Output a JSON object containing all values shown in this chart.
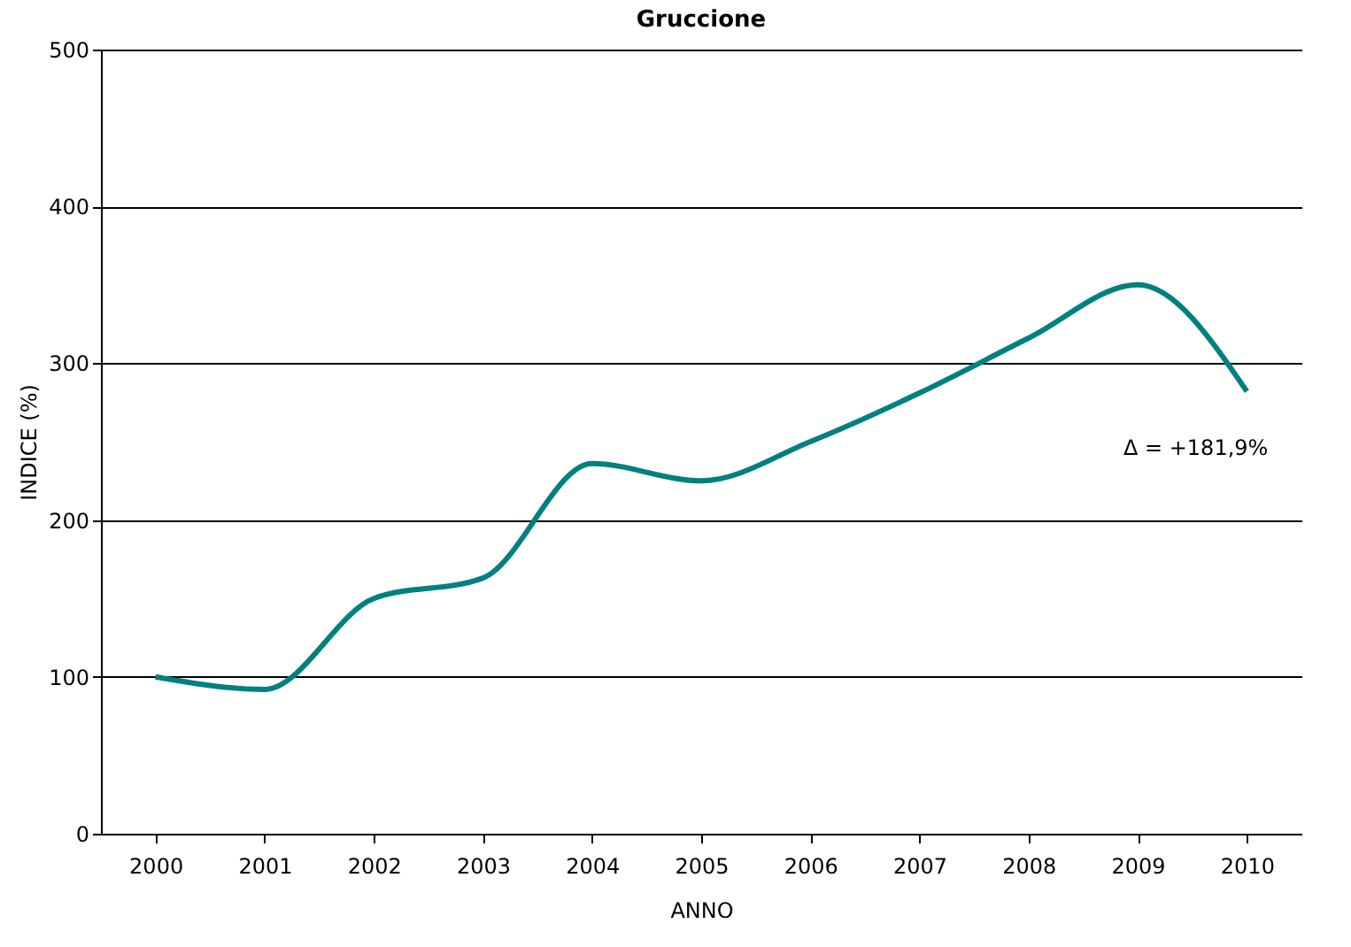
{
  "chart_data": {
    "type": "line",
    "title": "Gruccione",
    "xlabel": "ANNO",
    "ylabel": "INDICE (%)",
    "categories": [
      "2000",
      "2001",
      "2002",
      "2003",
      "2004",
      "2005",
      "2006",
      "2007",
      "2008",
      "2009",
      "2010"
    ],
    "series": [
      {
        "color": "#008080",
        "values": [
          100,
          92,
          150,
          163,
          236,
          225,
          250,
          281,
          316,
          350,
          282
        ]
      }
    ],
    "ylim": [
      0,
      500
    ],
    "yticks": [
      0,
      100,
      200,
      300,
      400,
      500
    ],
    "grid": "y",
    "marker": "none",
    "line_style": "solid",
    "annotations": [
      {
        "text": "Δ = +181,9%",
        "x": "2010",
        "y": 282
      }
    ]
  }
}
